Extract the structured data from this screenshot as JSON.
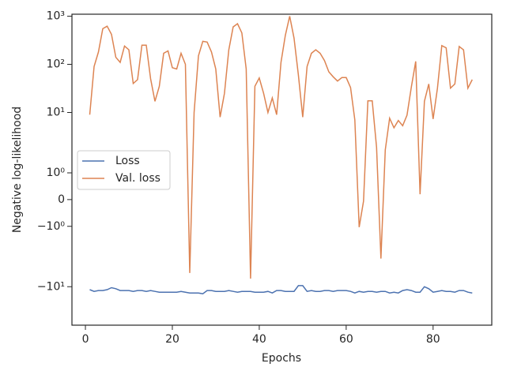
{
  "chart_data": {
    "type": "line",
    "xlabel": "Epochs",
    "ylabel": "Negative log-likelihood",
    "yscale": "symlog",
    "linthresh": 2,
    "x": [
      1,
      2,
      3,
      4,
      5,
      6,
      7,
      8,
      9,
      10,
      11,
      12,
      13,
      14,
      15,
      16,
      17,
      18,
      19,
      20,
      21,
      22,
      23,
      24,
      25,
      26,
      27,
      28,
      29,
      30,
      31,
      32,
      33,
      34,
      35,
      36,
      37,
      38,
      39,
      40,
      41,
      42,
      43,
      44,
      45,
      46,
      47,
      48,
      49,
      50,
      51,
      52,
      53,
      54,
      55,
      56,
      57,
      58,
      59,
      60,
      61,
      62,
      63,
      64,
      65,
      66,
      67,
      68,
      69,
      70,
      71,
      72,
      73,
      74,
      75,
      76,
      77,
      78,
      79,
      80,
      81,
      82,
      83,
      84,
      85,
      86,
      87,
      88,
      89
    ],
    "series": [
      {
        "name": "Loss",
        "color": "#4c72b0",
        "values": [
          -11.5,
          -12.5,
          -12,
          -12,
          -11.5,
          -10.5,
          -11,
          -12,
          -12,
          -12,
          -12.5,
          -12,
          -12,
          -12.5,
          -12,
          -12.5,
          -13,
          -13,
          -13,
          -13,
          -13,
          -12.5,
          -13,
          -13.5,
          -13.5,
          -13.5,
          -14,
          -12,
          -12,
          -12.5,
          -12.5,
          -12.5,
          -12,
          -12.5,
          -13,
          -12.5,
          -12.5,
          -12.5,
          -13,
          -13,
          -13,
          -12.5,
          -13.5,
          -12,
          -12,
          -12.5,
          -12.5,
          -12.5,
          -9.5,
          -9.5,
          -12.5,
          -12,
          -12.5,
          -12.5,
          -12,
          -12,
          -12.5,
          -12,
          -12,
          -12,
          -12.5,
          -13.5,
          -12.5,
          -13,
          -12.5,
          -12.5,
          -13,
          -12.5,
          -12.5,
          -13.5,
          -13,
          -13.5,
          -12,
          -11.5,
          -12,
          -13,
          -13,
          -10,
          -11,
          -13,
          -12.5,
          -12,
          -12.5,
          -12.5,
          -13,
          -12,
          -12,
          -13,
          -13.5
        ]
      },
      {
        "name": "Val. loss",
        "color": "#dd8452",
        "values": [
          9,
          90,
          180,
          550,
          620,
          420,
          140,
          110,
          240,
          200,
          40,
          48,
          250,
          250,
          50,
          17,
          35,
          170,
          190,
          85,
          80,
          170,
          100,
          -5.2,
          10,
          150,
          300,
          290,
          180,
          80,
          8,
          25,
          200,
          600,
          700,
          450,
          80,
          -6.8,
          35,
          52,
          25,
          10,
          20,
          9,
          110,
          400,
          1000,
          350,
          60,
          8,
          90,
          170,
          200,
          170,
          120,
          70,
          55,
          45,
          53,
          53,
          33,
          7,
          -1.03,
          -0.06,
          17.4,
          17.4,
          1.95,
          -2.6,
          1.86,
          7.6,
          4.8,
          6.8,
          5.3,
          8.8,
          34,
          115,
          0.2,
          17,
          39,
          7.3,
          32,
          245,
          220,
          32,
          39,
          235,
          200,
          32,
          48
        ]
      }
    ],
    "xlim": [
      -3.1,
      93.5
    ],
    "xticks": [
      0,
      20,
      40,
      60,
      80
    ],
    "ylim": [
      -63,
      1100
    ],
    "yticks": [
      {
        "value": -10,
        "label": "−10¹"
      },
      {
        "value": -1,
        "label": "−10⁰"
      },
      0,
      {
        "value": 1,
        "label": "10⁰"
      },
      {
        "value": 10,
        "label": "10¹"
      },
      {
        "value": 100,
        "label": "10²"
      },
      {
        "value": 1000,
        "label": "10³"
      }
    ],
    "legend": "center left"
  }
}
